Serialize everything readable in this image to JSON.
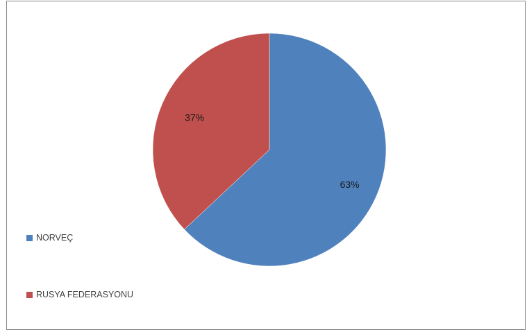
{
  "chart_data": {
    "type": "pie",
    "title": "",
    "slices": [
      {
        "label": "NORVEÇ",
        "value": 63,
        "display": "63%",
        "color": "#4f81bd"
      },
      {
        "label": "RUSYA FEDERASYONU",
        "value": 37,
        "display": "37%",
        "color": "#c0504d"
      }
    ],
    "start_angle": "12 o'clock",
    "direction": "clockwise",
    "legend_position": "left"
  }
}
